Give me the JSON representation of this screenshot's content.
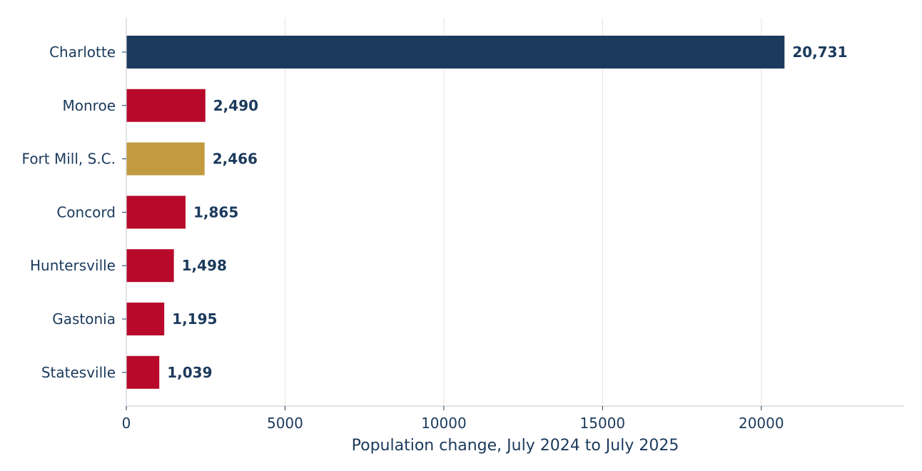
{
  "chart_data": {
    "type": "bar",
    "orientation": "horizontal",
    "categories": [
      "Charlotte",
      "Monroe",
      "Fort Mill, S.C.",
      "Concord",
      "Huntersville",
      "Gastonia",
      "Statesville"
    ],
    "values": [
      20731,
      2490,
      2466,
      1865,
      1498,
      1195,
      1039
    ],
    "data_labels": [
      "20,731",
      "2,490",
      "2,466",
      "1,865",
      "1,498",
      "1,195",
      "1,039"
    ],
    "bar_colors": [
      "#1b3a5c",
      "#b8092b",
      "#c29a3f",
      "#b8092b",
      "#b8092b",
      "#b8092b",
      "#b8092b"
    ],
    "xlabel": "Population change, July 2024 to July 2025",
    "ylabel": "",
    "xlim": [
      0,
      24500
    ],
    "xticks": [
      0,
      5000,
      10000,
      15000,
      20000
    ],
    "xtick_labels": [
      "0",
      "5000",
      "10000",
      "15000",
      "20000"
    ],
    "grid": "vertical",
    "legend": "none",
    "colors": {
      "text": "#1b3a5c",
      "grid": "#e3e3e3",
      "axis": "#cfd3d8"
    }
  }
}
